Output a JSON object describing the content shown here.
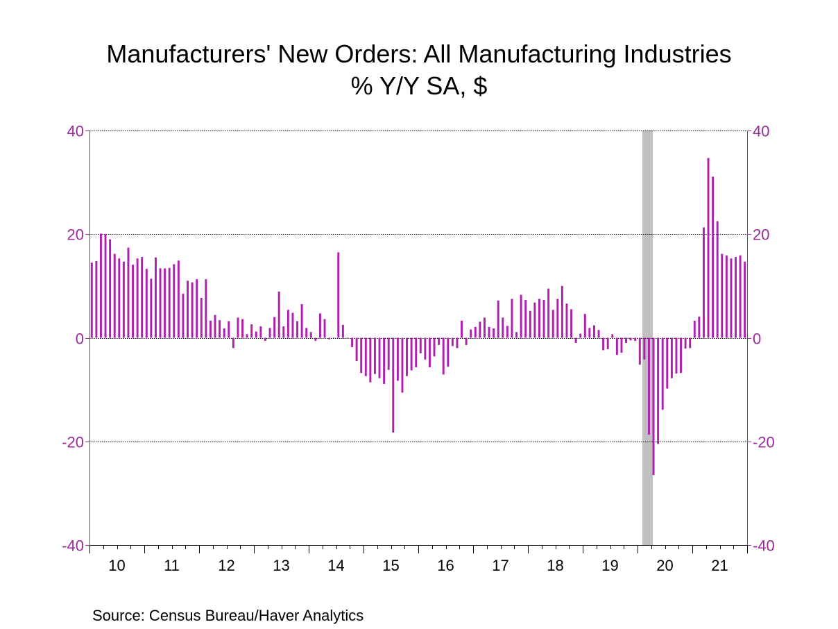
{
  "chart_data": {
    "type": "bar",
    "title": "Manufacturers' New Orders: All Manufacturing Industries",
    "subtitle": "% Y/Y   SA, $",
    "source": "Source:  Census Bureau/Haver Analytics",
    "ylim": [
      -40,
      40
    ],
    "yticks": [
      -40,
      -20,
      0,
      20,
      40
    ],
    "ytick_labels": [
      "-40",
      "-20",
      "0",
      "20",
      "40"
    ],
    "x_start": "2010-01",
    "x_end": "2021-12",
    "year_labels": [
      "10",
      "11",
      "12",
      "13",
      "14",
      "15",
      "16",
      "17",
      "18",
      "19",
      "20",
      "21"
    ],
    "grid": true,
    "recession_shading": {
      "start": "2020-02",
      "end": "2020-03",
      "color": "#c0c0c0"
    },
    "bar_color": "#b020b0",
    "axis_color": "#9a2a9a",
    "series": [
      {
        "name": "% Y/Y",
        "values": [
          14.5,
          14.8,
          20.1,
          20.0,
          19.0,
          16.2,
          15.3,
          14.7,
          17.4,
          14.1,
          15.3,
          15.6,
          13.3,
          11.4,
          15.5,
          13.4,
          13.4,
          13.5,
          14.2,
          14.9,
          8.5,
          11.0,
          10.7,
          11.3,
          7.7,
          11.3,
          3.3,
          4.4,
          3.4,
          1.8,
          3.2,
          -2.0,
          3.9,
          3.6,
          0.7,
          2.6,
          1.2,
          2.2,
          -0.6,
          1.9,
          4.0,
          8.9,
          2.2,
          5.4,
          4.8,
          3.2,
          6.5,
          1.9,
          1.1,
          -0.6,
          4.7,
          3.6,
          -0.3,
          0.0,
          16.5,
          2.5,
          0.0,
          -1.8,
          -4.5,
          -6.8,
          -7.4,
          -8.6,
          -7.0,
          -7.8,
          -8.9,
          -6.2,
          -18.3,
          -8.3,
          -10.6,
          -7.4,
          -6.3,
          -5.7,
          -3.0,
          -4.2,
          -5.7,
          -3.6,
          -1.4,
          -7.1,
          -5.6,
          -1.6,
          -2.0,
          3.3,
          -1.4,
          1.6,
          2.1,
          3.1,
          3.9,
          2.1,
          1.8,
          7.2,
          3.9,
          2.3,
          7.5,
          1.1,
          8.3,
          7.3,
          5.2,
          6.8,
          7.5,
          7.3,
          9.5,
          5.4,
          7.5,
          10.0,
          6.6,
          5.5,
          -1.0,
          0.8,
          4.6,
          1.9,
          2.4,
          1.5,
          -2.4,
          -2.2,
          0.7,
          -3.3,
          -2.9,
          -1.0,
          -0.5,
          -0.6,
          -5.2,
          -4.2,
          -18.7,
          -26.5,
          -20.5,
          -13.9,
          -9.8,
          -7.8,
          -6.9,
          -6.8,
          -2.1,
          -2.0,
          3.3,
          4.1,
          21.3,
          34.7,
          31.1,
          22.5,
          16.2,
          15.9,
          15.3,
          15.6,
          15.9,
          14.7
        ]
      }
    ]
  }
}
